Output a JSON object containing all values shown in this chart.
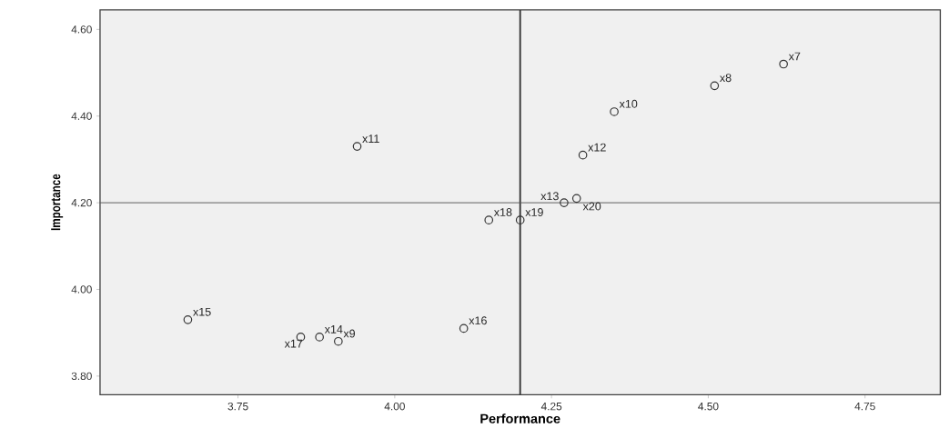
{
  "chart_data": {
    "type": "scatter",
    "xlabel": "Performance",
    "ylabel": "Importance",
    "x": [
      4.62,
      4.51,
      4.35,
      4.3,
      4.27,
      4.29,
      4.15,
      4.2,
      3.94,
      3.67,
      3.88,
      3.85,
      3.91,
      4.11
    ],
    "values": [
      4.52,
      4.47,
      4.41,
      4.31,
      4.2,
      4.21,
      4.16,
      4.16,
      4.33,
      3.93,
      3.89,
      3.89,
      3.88,
      3.91
    ],
    "color": "#333333",
    "marker": "circle",
    "xlim": [
      3.53,
      4.87
    ],
    "ylim": [
      3.757,
      4.645
    ],
    "xticks": [
      3.75,
      {
        "value": 4,
        "label": "4.00"
      },
      4.25,
      {
        "value": 4.5,
        "label": "4.50"
      },
      4.75
    ],
    "yticks": [
      {
        "value": 3.8,
        "label": "3.80"
      },
      {
        "value": 4,
        "label": "4.00"
      },
      {
        "value": 4.2,
        "label": "4.20"
      },
      {
        "value": 4.4,
        "label": "4.40"
      },
      {
        "value": 4.6,
        "label": "4.60"
      }
    ],
    "ref_lines": [
      {
        "axis": "x",
        "value": 4.2,
        "color": "#333333"
      },
      {
        "axis": "y",
        "value": 4.2,
        "color": "#555555"
      }
    ],
    "annotations": [
      {
        "text": "x7",
        "x": 4.62,
        "y": 4.52
      },
      {
        "text": "x8",
        "x": 4.51,
        "y": 4.47
      },
      {
        "text": "x10",
        "x": 4.35,
        "y": 4.41
      },
      {
        "text": "x12",
        "x": 4.3,
        "y": 4.31
      },
      {
        "text": "x13",
        "x": 4.27,
        "y": 4.2
      },
      {
        "text": "x20",
        "x": 4.29,
        "y": 4.21
      },
      {
        "text": "x18",
        "x": 4.15,
        "y": 4.16
      },
      {
        "text": "x19",
        "x": 4.2,
        "y": 4.16
      },
      {
        "text": "x11",
        "x": 3.94,
        "y": 4.33
      },
      {
        "text": "x15",
        "x": 3.67,
        "y": 3.93
      },
      {
        "text": "x14",
        "x": 3.88,
        "y": 3.89
      },
      {
        "text": "x17",
        "x": 3.85,
        "y": 3.89
      },
      {
        "text": "x9",
        "x": 3.91,
        "y": 3.88
      },
      {
        "text": "x16",
        "x": 4.11,
        "y": 3.91
      }
    ],
    "grid": false
  }
}
